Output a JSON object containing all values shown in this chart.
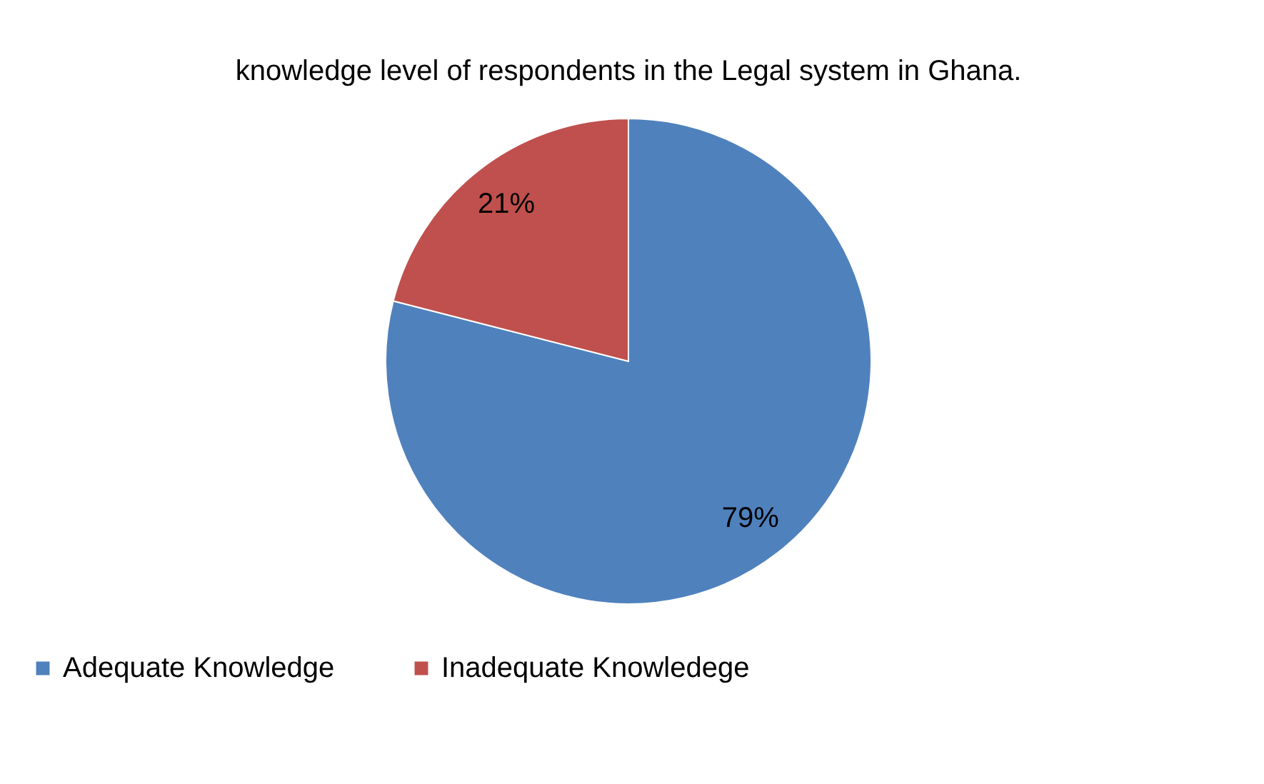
{
  "chart_data": {
    "type": "pie",
    "title": "knowledge level of respondents in the Legal system in Ghana.",
    "categories": [
      "Adequate Knowledge",
      "Inadequate Knowledege"
    ],
    "values": [
      79,
      21
    ],
    "colors": [
      "#4f81bd",
      "#c0504d"
    ],
    "value_labels": [
      "79%",
      "21%"
    ],
    "legend": "bottom"
  }
}
